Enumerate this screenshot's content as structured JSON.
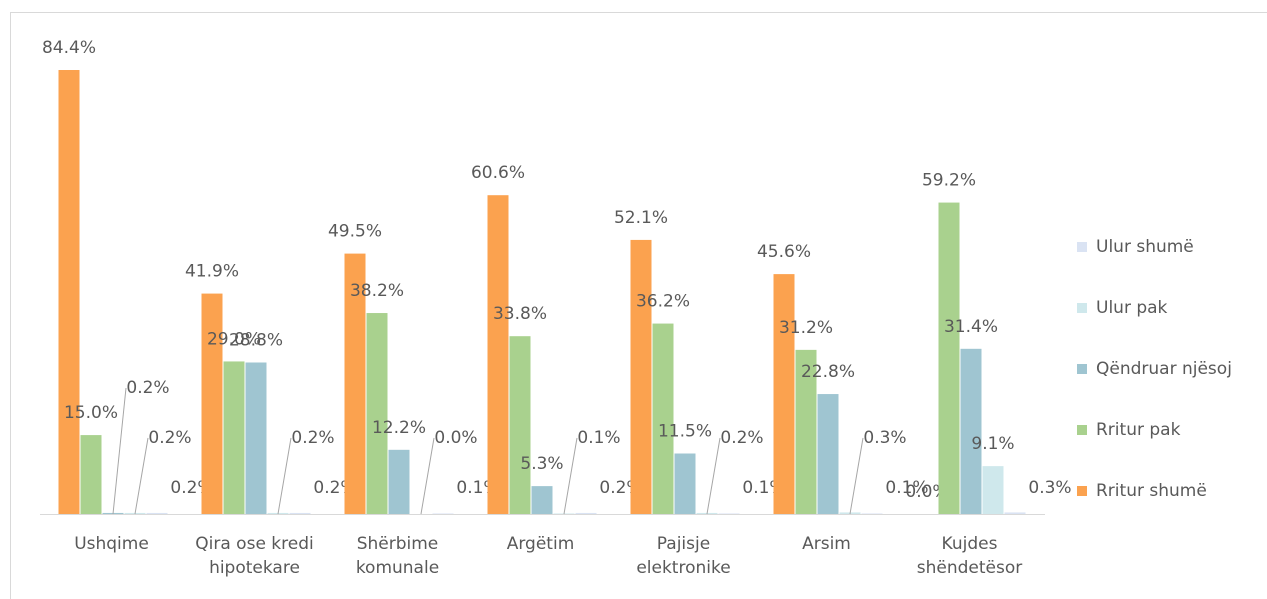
{
  "chart_data": {
    "type": "bar",
    "categories": [
      "Ushqime",
      "Qira ose kredi hipotekare",
      "Shërbime komunale",
      "Argëtim",
      "Pajisje elektronike",
      "Arsim",
      "Kujdes shëndetësor"
    ],
    "series": [
      {
        "name": "Rritur shumë",
        "color": "#fba24f",
        "values": [
          84.4,
          41.9,
          49.5,
          60.6,
          52.1,
          45.6,
          0.0
        ],
        "value_labels": [
          "84.4%",
          "41.9%",
          "49.5%",
          "60.6%",
          "52.1%",
          "45.6%",
          "0.0%"
        ]
      },
      {
        "name": "Rritur pak",
        "color": "#a9d18e",
        "values": [
          15.0,
          29.0,
          38.2,
          33.8,
          36.2,
          31.2,
          59.2
        ],
        "value_labels": [
          "15.0%",
          "29.0%",
          "38.2%",
          "33.8%",
          "36.2%",
          "31.2%",
          "59.2%"
        ]
      },
      {
        "name": "Qëndruar njësoj",
        "color": "#9fc5d1",
        "values": [
          0.2,
          28.8,
          12.2,
          5.3,
          11.5,
          22.8,
          31.4
        ],
        "value_labels": [
          "0.2%",
          "28.8%",
          "12.2%",
          "5.3%",
          "11.5%",
          "22.8%",
          "31.4%"
        ]
      },
      {
        "name": "Ulur pak",
        "color": "#cfe8ec",
        "values": [
          0.2,
          0.2,
          0.0,
          0.1,
          0.2,
          0.3,
          9.1
        ],
        "value_labels": [
          "0.2%",
          "0.2%",
          "0.0%",
          "0.1%",
          "0.2%",
          "0.3%",
          "9.1%"
        ]
      },
      {
        "name": "Ulur shumë",
        "color": "#dae3f3",
        "values": [
          0.2,
          0.2,
          0.1,
          0.2,
          0.1,
          0.1,
          0.3
        ],
        "value_labels": [
          "0.2%",
          "0.2%",
          "0.1%",
          "0.2%",
          "0.1%",
          "0.1%",
          "0.3%"
        ]
      }
    ],
    "legend": "right"
  }
}
